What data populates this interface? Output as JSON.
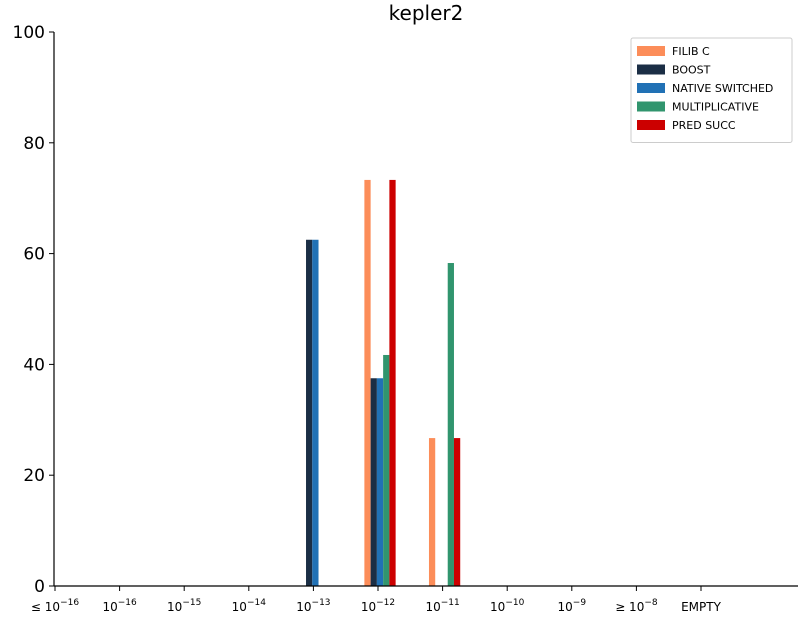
{
  "chart_data": {
    "type": "bar",
    "title": "kepler2",
    "xlabel": "",
    "ylabel": "",
    "ylim": [
      0,
      100
    ],
    "yticks": [
      0,
      20,
      40,
      60,
      80,
      100
    ],
    "grid": false,
    "legend_position": "top-right",
    "categories": [
      {
        "prefix": "≤ ",
        "base": "10",
        "exp": "−16"
      },
      {
        "prefix": "",
        "base": "10",
        "exp": "−16"
      },
      {
        "prefix": "",
        "base": "10",
        "exp": "−15"
      },
      {
        "prefix": "",
        "base": "10",
        "exp": "−14"
      },
      {
        "prefix": "",
        "base": "10",
        "exp": "−13"
      },
      {
        "prefix": "",
        "base": "10",
        "exp": "−12"
      },
      {
        "prefix": "",
        "base": "10",
        "exp": "−11"
      },
      {
        "prefix": "",
        "base": "10",
        "exp": "−10"
      },
      {
        "prefix": "",
        "base": "10",
        "exp": "−9"
      },
      {
        "prefix": "≥ ",
        "base": "10",
        "exp": "−8"
      },
      {
        "prefix": "",
        "base": "EMPTY",
        "exp": ""
      }
    ],
    "series": [
      {
        "name": "FILIB C",
        "color": "#fc8d59",
        "values": [
          0,
          0,
          0,
          0,
          0,
          73.3,
          26.7,
          0,
          0,
          0,
          0
        ]
      },
      {
        "name": "BOOST",
        "color": "#1b2e45",
        "values": [
          0,
          0,
          0,
          0,
          62.5,
          37.5,
          0,
          0,
          0,
          0,
          0
        ]
      },
      {
        "name": "NATIVE SWITCHED",
        "color": "#2171b5",
        "values": [
          0,
          0,
          0,
          0,
          62.5,
          37.5,
          0,
          0,
          0,
          0,
          0
        ]
      },
      {
        "name": "MULTIPLICATIVE",
        "color": "#31956e",
        "values": [
          0,
          0,
          0,
          0,
          0,
          41.7,
          58.3,
          0,
          0,
          0,
          0
        ]
      },
      {
        "name": "PRED SUCC",
        "color": "#cc0000",
        "values": [
          0,
          0,
          0,
          0,
          0,
          73.3,
          26.7,
          0,
          0,
          0,
          0
        ]
      }
    ]
  }
}
